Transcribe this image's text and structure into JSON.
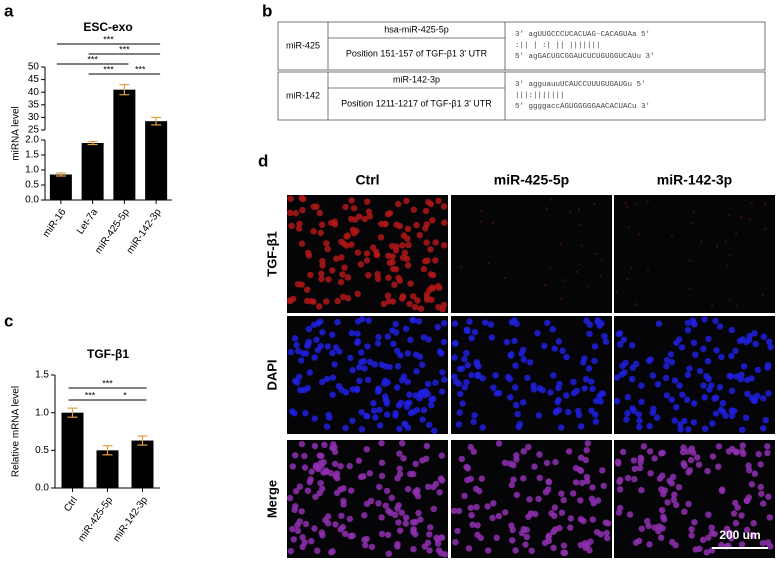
{
  "panel_labels": [
    "a",
    "b",
    "c",
    "d"
  ],
  "chart_data": [
    {
      "type": "bar",
      "title": "ESC-exo",
      "y_label": "miRNA level",
      "categories": [
        "miR-16",
        "Let-7a",
        "miR-425-5p",
        "miR-142-3p"
      ],
      "values": [
        0.85,
        1.9,
        41,
        28.5
      ],
      "errors": [
        0.05,
        0.05,
        2,
        1.5
      ],
      "color": "#000000",
      "error_color": "#e0a040",
      "ylim": [
        0,
        50
      ],
      "ybreak": [
        2,
        25
      ],
      "yticks": [
        {
          "value": 0,
          "label": "0.0"
        },
        {
          "value": 0.5,
          "label": "0.5"
        },
        {
          "value": 1,
          "label": "1.0"
        },
        {
          "value": 1.5,
          "label": "1.5"
        },
        {
          "value": 2,
          "label": "2.0"
        },
        25,
        30,
        35,
        40,
        45,
        50
      ],
      "significance": [
        {
          "label": "***",
          "between": [
            0,
            3
          ]
        },
        {
          "label": "***",
          "between": [
            1,
            3
          ]
        },
        {
          "label": "***",
          "between": [
            0,
            2
          ]
        },
        {
          "label": "***",
          "between": [
            1,
            2
          ]
        },
        {
          "label": "***",
          "between": [
            2,
            3
          ]
        }
      ]
    },
    {
      "type": "bar",
      "title": "TGF-β1",
      "y_label": "Relative mRNA level",
      "categories": [
        "Ctrl",
        "miR-425-5p",
        "miR-142-3p"
      ],
      "values": [
        1.0,
        0.5,
        0.63
      ],
      "errors": [
        0.06,
        0.06,
        0.06
      ],
      "color": "#000000",
      "error_color": "#e0a040",
      "ylim": [
        0,
        1.5
      ],
      "yticks": [
        {
          "value": 0,
          "label": "0.0"
        },
        {
          "value": 0.5,
          "label": "0.5"
        },
        {
          "value": 1,
          "label": "1.0"
        },
        {
          "value": 1.5,
          "label": "1.5"
        }
      ],
      "significance": [
        {
          "label": "***",
          "between": [
            0,
            2
          ]
        },
        {
          "label": "***",
          "between": [
            0,
            1
          ]
        },
        {
          "label": "*",
          "between": [
            1,
            2
          ]
        }
      ]
    }
  ],
  "table": {
    "rows": [
      {
        "mirna": "miR-425",
        "name": "hsa-miR-425-5p",
        "position": "Position 151-157 of TGF-β1 3' UTR",
        "sequence": [
          "3' agUUGCCCUCACUAG-CACAGUAa 5'",
          "  :|| | :|   || |||||||",
          "5' agGACUGCGGAUCUCUGUGGUCAUu 3'"
        ]
      },
      {
        "mirna": "miR-142",
        "name": "miR-142-3p",
        "position": "Position 1211-1217 of TGF-β1 3' UTR",
        "sequence": [
          "3' agguauuUCAUCCUUUGUGAUGu 5'",
          "  |||:|||||||",
          "5' ggggaccAGUGGGGGAACACUACu 3'"
        ]
      }
    ]
  },
  "images": {
    "columns": [
      "Ctrl",
      "miR-425-5p",
      "miR-142-3p"
    ],
    "rows": [
      "TGF-β1",
      "DAPI",
      "Merge"
    ],
    "scale_bar": "200 um"
  }
}
